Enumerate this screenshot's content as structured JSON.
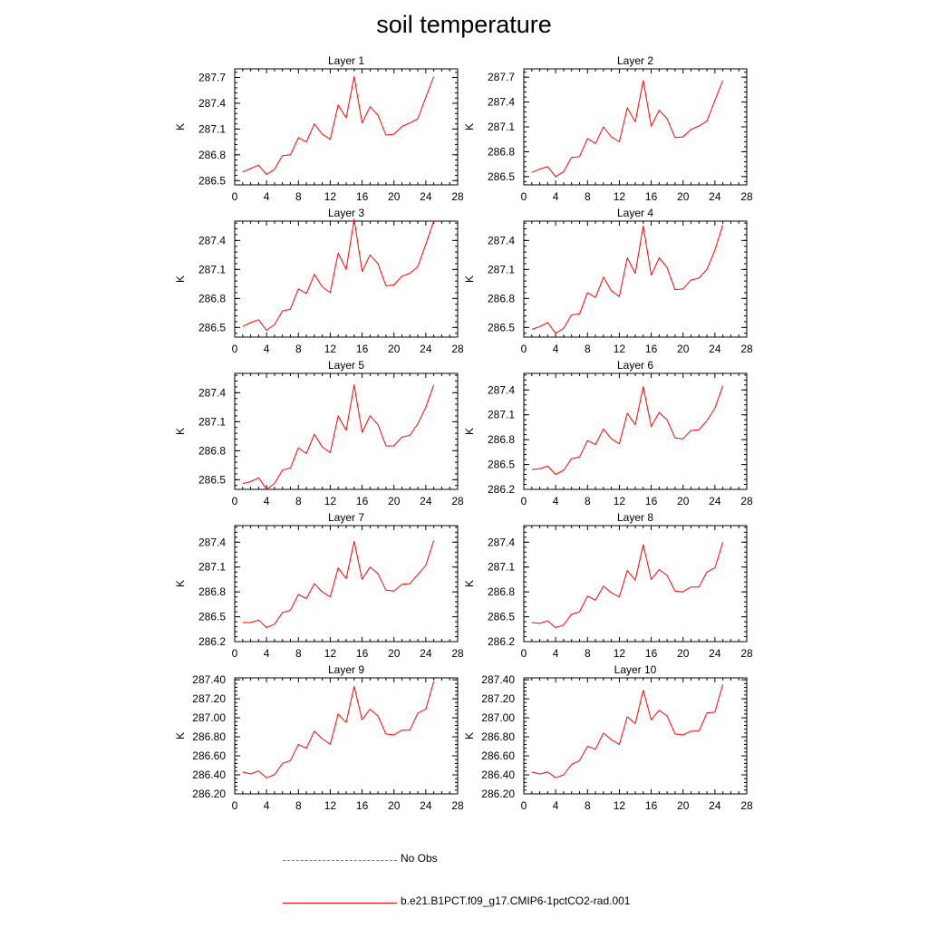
{
  "page_title": "soil temperature",
  "colors": {
    "model": "#ff0000",
    "obs": "#6b6bd6",
    "axis": "#000000"
  },
  "legend": {
    "obs_label": "No Obs",
    "model_label": "b.e21.B1PCT.f09_g17.CMIP6-1pctCO2-rad.001"
  },
  "chart_data": [
    {
      "type": "line",
      "title": "Layer 1",
      "ylabel": "K",
      "xlim": [
        0,
        28
      ],
      "xticks": [
        0,
        4,
        8,
        12,
        16,
        20,
        24,
        28
      ],
      "ylim": [
        286.45,
        287.8
      ],
      "yticks": [
        286.5,
        286.8,
        287.1,
        287.4,
        287.7
      ],
      "ytick_labels": [
        "286.5",
        "286.8",
        "287.1",
        "287.4",
        "287.7"
      ],
      "x": [
        1,
        2,
        3,
        4,
        5,
        6,
        7,
        8,
        9,
        10,
        11,
        12,
        13,
        14,
        15,
        16,
        17,
        18,
        19,
        20,
        21,
        22,
        23,
        24,
        25
      ],
      "series": [
        {
          "name": "b.e21.B1PCT.f09_g17.CMIP6-1pctCO2-rad.001",
          "values": [
            286.6,
            286.64,
            286.68,
            286.57,
            286.63,
            286.79,
            286.8,
            287.0,
            286.95,
            287.16,
            287.04,
            286.98,
            287.38,
            287.23,
            287.71,
            287.17,
            287.36,
            287.26,
            287.03,
            287.04,
            287.13,
            287.17,
            287.22,
            287.47,
            287.71
          ]
        }
      ]
    },
    {
      "type": "line",
      "title": "Layer 2",
      "ylabel": "K",
      "xlim": [
        0,
        28
      ],
      "xticks": [
        0,
        4,
        8,
        12,
        16,
        20,
        24,
        28
      ],
      "ylim": [
        286.4,
        287.8
      ],
      "yticks": [
        286.5,
        286.8,
        287.1,
        287.4,
        287.7
      ],
      "ytick_labels": [
        "286.5",
        "286.8",
        "287.1",
        "287.4",
        "287.7"
      ],
      "x": [
        1,
        2,
        3,
        4,
        5,
        6,
        7,
        8,
        9,
        10,
        11,
        12,
        13,
        14,
        15,
        16,
        17,
        18,
        19,
        20,
        21,
        22,
        23,
        24,
        25
      ],
      "series": [
        {
          "name": "b.e21.B1PCT.f09_g17.CMIP6-1pctCO2-rad.001",
          "values": [
            286.55,
            286.59,
            286.62,
            286.5,
            286.56,
            286.73,
            286.74,
            286.96,
            286.9,
            287.1,
            286.98,
            286.92,
            287.33,
            287.16,
            287.66,
            287.11,
            287.3,
            287.2,
            286.97,
            286.98,
            287.07,
            287.11,
            287.17,
            287.42,
            287.66
          ]
        }
      ]
    },
    {
      "type": "line",
      "title": "Layer 3",
      "ylabel": "K",
      "xlim": [
        0,
        28
      ],
      "xticks": [
        0,
        4,
        8,
        12,
        16,
        20,
        24,
        28
      ],
      "ylim": [
        286.4,
        287.6
      ],
      "yticks": [
        286.5,
        286.8,
        287.1,
        287.4
      ],
      "ytick_labels": [
        "286.5",
        "286.8",
        "287.1",
        "287.4"
      ],
      "x": [
        1,
        2,
        3,
        4,
        5,
        6,
        7,
        8,
        9,
        10,
        11,
        12,
        13,
        14,
        15,
        16,
        17,
        18,
        19,
        20,
        21,
        22,
        23,
        24,
        25
      ],
      "series": [
        {
          "name": "b.e21.B1PCT.f09_g17.CMIP6-1pctCO2-rad.001",
          "values": [
            286.51,
            286.55,
            286.58,
            286.47,
            286.53,
            286.67,
            286.69,
            286.9,
            286.85,
            287.05,
            286.92,
            286.86,
            287.27,
            287.1,
            287.62,
            287.08,
            287.25,
            287.16,
            286.93,
            286.94,
            287.03,
            287.06,
            287.13,
            287.36,
            287.6
          ]
        }
      ]
    },
    {
      "type": "line",
      "title": "Layer 4",
      "ylabel": "K",
      "xlim": [
        0,
        28
      ],
      "xticks": [
        0,
        4,
        8,
        12,
        16,
        20,
        24,
        28
      ],
      "ylim": [
        286.4,
        287.6
      ],
      "yticks": [
        286.5,
        286.8,
        287.1,
        287.4
      ],
      "ytick_labels": [
        "286.5",
        "286.8",
        "287.1",
        "287.4"
      ],
      "x": [
        1,
        2,
        3,
        4,
        5,
        6,
        7,
        8,
        9,
        10,
        11,
        12,
        13,
        14,
        15,
        16,
        17,
        18,
        19,
        20,
        21,
        22,
        23,
        24,
        25
      ],
      "series": [
        {
          "name": "b.e21.B1PCT.f09_g17.CMIP6-1pctCO2-rad.001",
          "values": [
            286.48,
            286.51,
            286.55,
            286.44,
            286.49,
            286.63,
            286.64,
            286.86,
            286.81,
            287.02,
            286.88,
            286.82,
            287.22,
            287.06,
            287.55,
            287.04,
            287.22,
            287.12,
            286.89,
            286.9,
            286.99,
            287.01,
            287.1,
            287.3,
            287.56
          ]
        }
      ]
    },
    {
      "type": "line",
      "title": "Layer 5",
      "ylabel": "K",
      "xlim": [
        0,
        28
      ],
      "xticks": [
        0,
        4,
        8,
        12,
        16,
        20,
        24,
        28
      ],
      "ylim": [
        286.4,
        287.6
      ],
      "yticks": [
        286.5,
        286.8,
        287.1,
        287.4
      ],
      "ytick_labels": [
        "286.5",
        "286.8",
        "287.1",
        "287.4"
      ],
      "x": [
        1,
        2,
        3,
        4,
        5,
        6,
        7,
        8,
        9,
        10,
        11,
        12,
        13,
        14,
        15,
        16,
        17,
        18,
        19,
        20,
        21,
        22,
        23,
        24,
        25
      ],
      "series": [
        {
          "name": "b.e21.B1PCT.f09_g17.CMIP6-1pctCO2-rad.001",
          "values": [
            286.46,
            286.48,
            286.52,
            286.4,
            286.46,
            286.6,
            286.62,
            286.83,
            286.77,
            286.97,
            286.84,
            286.78,
            287.16,
            287.01,
            287.48,
            286.99,
            287.16,
            287.07,
            286.85,
            286.85,
            286.94,
            286.96,
            287.08,
            287.25,
            287.48
          ]
        }
      ]
    },
    {
      "type": "line",
      "title": "Layer 6",
      "ylabel": "K",
      "xlim": [
        0,
        28
      ],
      "xticks": [
        0,
        4,
        8,
        12,
        16,
        20,
        24,
        28
      ],
      "ylim": [
        286.2,
        287.6
      ],
      "yticks": [
        286.2,
        286.5,
        286.8,
        287.1,
        287.4
      ],
      "ytick_labels": [
        "286.2",
        "286.5",
        "286.8",
        "287.1",
        "287.4"
      ],
      "x": [
        1,
        2,
        3,
        4,
        5,
        6,
        7,
        8,
        9,
        10,
        11,
        12,
        13,
        14,
        15,
        16,
        17,
        18,
        19,
        20,
        21,
        22,
        23,
        24,
        25
      ],
      "series": [
        {
          "name": "b.e21.B1PCT.f09_g17.CMIP6-1pctCO2-rad.001",
          "values": [
            286.44,
            286.45,
            286.48,
            286.38,
            286.43,
            286.57,
            286.59,
            286.79,
            286.74,
            286.93,
            286.81,
            286.75,
            287.12,
            286.98,
            287.44,
            286.96,
            287.13,
            287.04,
            286.82,
            286.81,
            286.91,
            286.92,
            287.03,
            287.18,
            287.45
          ]
        }
      ]
    },
    {
      "type": "line",
      "title": "Layer 7",
      "ylabel": "K",
      "xlim": [
        0,
        28
      ],
      "xticks": [
        0,
        4,
        8,
        12,
        16,
        20,
        24,
        28
      ],
      "ylim": [
        286.2,
        287.6
      ],
      "yticks": [
        286.2,
        286.5,
        286.8,
        287.1,
        287.4
      ],
      "ytick_labels": [
        "286.2",
        "286.5",
        "286.8",
        "287.1",
        "287.4"
      ],
      "x": [
        1,
        2,
        3,
        4,
        5,
        6,
        7,
        8,
        9,
        10,
        11,
        12,
        13,
        14,
        15,
        16,
        17,
        18,
        19,
        20,
        21,
        22,
        23,
        24,
        25
      ],
      "series": [
        {
          "name": "b.e21.B1PCT.f09_g17.CMIP6-1pctCO2-rad.001",
          "values": [
            286.43,
            286.43,
            286.46,
            286.37,
            286.41,
            286.55,
            286.58,
            286.77,
            286.72,
            286.9,
            286.8,
            286.74,
            287.09,
            286.96,
            287.41,
            286.95,
            287.1,
            287.02,
            286.82,
            286.81,
            286.89,
            286.9,
            287.01,
            287.12,
            287.42
          ]
        }
      ]
    },
    {
      "type": "line",
      "title": "Layer 8",
      "ylabel": "K",
      "xlim": [
        0,
        28
      ],
      "xticks": [
        0,
        4,
        8,
        12,
        16,
        20,
        24,
        28
      ],
      "ylim": [
        286.2,
        287.6
      ],
      "yticks": [
        286.2,
        286.5,
        286.8,
        287.1,
        287.4
      ],
      "ytick_labels": [
        "286.2",
        "286.5",
        "286.8",
        "287.1",
        "287.4"
      ],
      "x": [
        1,
        2,
        3,
        4,
        5,
        6,
        7,
        8,
        9,
        10,
        11,
        12,
        13,
        14,
        15,
        16,
        17,
        18,
        19,
        20,
        21,
        22,
        23,
        24,
        25
      ],
      "series": [
        {
          "name": "b.e21.B1PCT.f09_g17.CMIP6-1pctCO2-rad.001",
          "values": [
            286.43,
            286.42,
            286.45,
            286.37,
            286.4,
            286.53,
            286.56,
            286.75,
            286.7,
            286.87,
            286.79,
            286.74,
            287.06,
            286.94,
            287.37,
            286.95,
            287.07,
            287.0,
            286.81,
            286.8,
            286.86,
            286.86,
            287.04,
            287.09,
            287.4
          ]
        }
      ]
    },
    {
      "type": "line",
      "title": "Layer 9",
      "ylabel": "K",
      "xlim": [
        0,
        28
      ],
      "xticks": [
        0,
        4,
        8,
        12,
        16,
        20,
        24,
        28
      ],
      "ylim": [
        286.2,
        287.42
      ],
      "yticks": [
        286.2,
        286.4,
        286.6,
        286.8,
        287.0,
        287.2,
        287.4
      ],
      "ytick_labels": [
        "286.20",
        "286.40",
        "286.60",
        "286.80",
        "287.00",
        "287.20",
        "287.40"
      ],
      "x": [
        1,
        2,
        3,
        4,
        5,
        6,
        7,
        8,
        9,
        10,
        11,
        12,
        13,
        14,
        15,
        16,
        17,
        18,
        19,
        20,
        21,
        22,
        23,
        24,
        25
      ],
      "series": [
        {
          "name": "b.e21.B1PCT.f09_g17.CMIP6-1pctCO2-rad.001",
          "values": [
            286.43,
            286.41,
            286.44,
            286.37,
            286.4,
            286.52,
            286.55,
            286.72,
            286.68,
            286.86,
            286.78,
            286.72,
            287.04,
            286.95,
            287.33,
            286.98,
            287.09,
            287.02,
            286.83,
            286.82,
            286.87,
            286.87,
            287.05,
            287.09,
            287.38
          ]
        }
      ]
    },
    {
      "type": "line",
      "title": "Layer 10",
      "ylabel": "K",
      "xlim": [
        0,
        28
      ],
      "xticks": [
        0,
        4,
        8,
        12,
        16,
        20,
        24,
        28
      ],
      "ylim": [
        286.2,
        287.42
      ],
      "yticks": [
        286.2,
        286.4,
        286.6,
        286.8,
        287.0,
        287.2,
        287.4
      ],
      "ytick_labels": [
        "286.20",
        "286.40",
        "286.60",
        "286.80",
        "287.00",
        "287.20",
        "287.40"
      ],
      "x": [
        1,
        2,
        3,
        4,
        5,
        6,
        7,
        8,
        9,
        10,
        11,
        12,
        13,
        14,
        15,
        16,
        17,
        18,
        19,
        20,
        21,
        22,
        23,
        24,
        25
      ],
      "series": [
        {
          "name": "b.e21.B1PCT.f09_g17.CMIP6-1pctCO2-rad.001",
          "values": [
            286.43,
            286.41,
            286.43,
            286.37,
            286.4,
            286.51,
            286.55,
            286.7,
            286.67,
            286.84,
            286.77,
            286.72,
            287.01,
            286.94,
            287.29,
            286.98,
            287.08,
            287.02,
            286.83,
            286.82,
            286.86,
            286.86,
            287.05,
            287.06,
            287.35
          ]
        }
      ]
    }
  ]
}
